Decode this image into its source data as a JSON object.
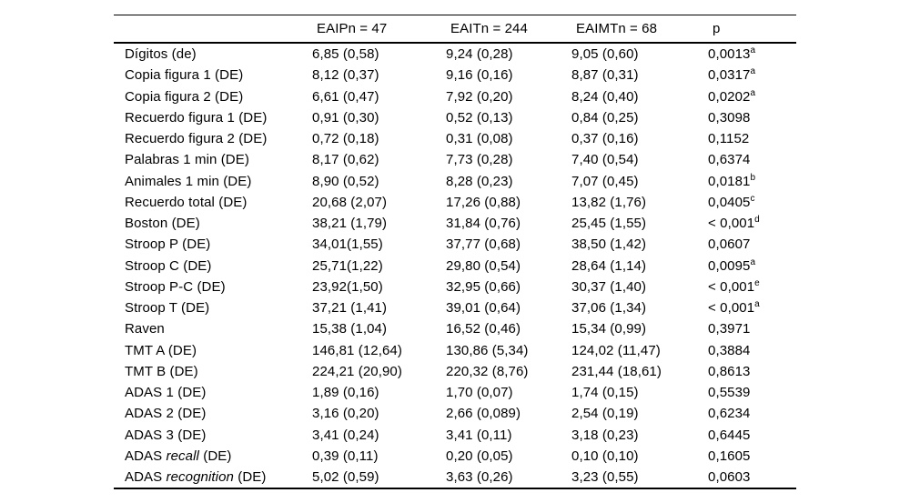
{
  "table": {
    "columns": [
      "",
      "EAIPn = 47",
      "EAITn = 244",
      "EAIMTn = 68",
      "p"
    ],
    "rows": [
      {
        "label": "Dígitos (de)",
        "values": [
          "6,85 (0,58)",
          "9,24 (0,28)",
          "9,05 (0,60)"
        ],
        "p": "0,0013",
        "p_sup": "a"
      },
      {
        "label": "Copia figura 1 (DE)",
        "values": [
          "8,12 (0,37)",
          "9,16 (0,16)",
          "8,87 (0,31)"
        ],
        "p": "0,0317",
        "p_sup": "a"
      },
      {
        "label": "Copia figura 2 (DE)",
        "values": [
          "6,61 (0,47)",
          "7,92 (0,20)",
          "8,24 (0,40)"
        ],
        "p": "0,0202",
        "p_sup": "a"
      },
      {
        "label": "Recuerdo figura 1 (DE)",
        "values": [
          "0,91 (0,30)",
          "0,52 (0,13)",
          "0,84 (0,25)"
        ],
        "p": "0,3098",
        "p_sup": ""
      },
      {
        "label": "Recuerdo figura 2 (DE)",
        "values": [
          "0,72 (0,18)",
          "0,31 (0,08)",
          "0,37 (0,16)"
        ],
        "p": "0,1152",
        "p_sup": ""
      },
      {
        "label": "Palabras 1 min (DE)",
        "values": [
          "8,17 (0,62)",
          "7,73 (0,28)",
          "7,40 (0,54)"
        ],
        "p": "0,6374",
        "p_sup": ""
      },
      {
        "label": "Animales 1 min (DE)",
        "values": [
          "8,90 (0,52)",
          "8,28 (0,23)",
          "7,07 (0,45)"
        ],
        "p": "0,0181",
        "p_sup": "b"
      },
      {
        "label": "Recuerdo total (DE)",
        "values": [
          "20,68 (2,07)",
          "17,26 (0,88)",
          "13,82 (1,76)"
        ],
        "p": "0,0405",
        "p_sup": "c"
      },
      {
        "label": "Boston (DE)",
        "values": [
          "38,21 (1,79)",
          "31,84 (0,76)",
          "25,45 (1,55)"
        ],
        "p": "< 0,001",
        "p_sup": "d"
      },
      {
        "label": "Stroop P (DE)",
        "values": [
          "34,01(1,55)",
          "37,77 (0,68)",
          "38,50 (1,42)"
        ],
        "p": "0,0607",
        "p_sup": ""
      },
      {
        "label": "Stroop C (DE)",
        "values": [
          "25,71(1,22)",
          "29,80 (0,54)",
          "28,64 (1,14)"
        ],
        "p": "0,0095",
        "p_sup": "a"
      },
      {
        "label": "Stroop P-C (DE)",
        "values": [
          "23,92(1,50)",
          "32,95 (0,66)",
          "30,37 (1,40)"
        ],
        "p": "< 0,001",
        "p_sup": "e"
      },
      {
        "label": "Stroop T (DE)",
        "values": [
          "37,21 (1,41)",
          "39,01 (0,64)",
          "37,06 (1,34)"
        ],
        "p": "< 0,001",
        "p_sup": "a"
      },
      {
        "label": "Raven",
        "values": [
          "15,38 (1,04)",
          "16,52 (0,46)",
          "15,34 (0,99)"
        ],
        "p": "0,3971",
        "p_sup": ""
      },
      {
        "label": "TMT A (DE)",
        "values": [
          "146,81 (12,64)",
          "130,86 (5,34)",
          "124,02 (11,47)"
        ],
        "p": "0,3884",
        "p_sup": ""
      },
      {
        "label": "TMT B (DE)",
        "values": [
          "224,21 (20,90)",
          "220,32 (8,76)",
          "231,44 (18,61)"
        ],
        "p": "0,8613",
        "p_sup": ""
      },
      {
        "label": "ADAS 1 (DE)",
        "values": [
          "1,89 (0,16)",
          "1,70 (0,07)",
          "1,74 (0,15)"
        ],
        "p": "0,5539",
        "p_sup": ""
      },
      {
        "label": "ADAS 2 (DE)",
        "values": [
          "3,16 (0,20)",
          "2,66 (0,089)",
          "2,54 (0,19)"
        ],
        "p": "0,6234",
        "p_sup": ""
      },
      {
        "label": "ADAS 3 (DE)",
        "values": [
          "3,41 (0,24)",
          "3,41 (0,11)",
          "3,18 (0,23)"
        ],
        "p": "0,6445",
        "p_sup": ""
      },
      {
        "label": [
          {
            "t": "ADAS ",
            "i": 0
          },
          {
            "t": "recall",
            "i": 1
          },
          {
            "t": " (DE)",
            "i": 0
          }
        ],
        "values": [
          "0,39 (0,11)",
          "0,20 (0,05)",
          "0,10 (0,10)"
        ],
        "p": "0,1605",
        "p_sup": ""
      },
      {
        "label": [
          {
            "t": "ADAS ",
            "i": 0
          },
          {
            "t": "recognition",
            "i": 1
          },
          {
            "t": " (DE)",
            "i": 0
          }
        ],
        "values": [
          "5,02 (0,59)",
          "3,63 (0,26)",
          "3,23 (0,55)"
        ],
        "p": "0,0603",
        "p_sup": ""
      }
    ]
  }
}
